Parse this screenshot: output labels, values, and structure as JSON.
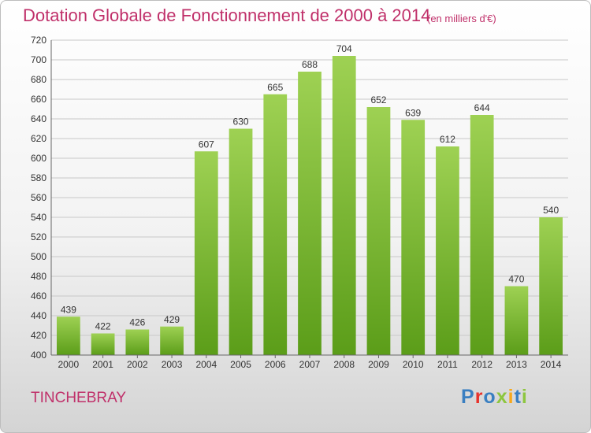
{
  "header": {
    "title": "Dotation Globale de Fonctionnement de 2000 à 2014",
    "unit": "(en milliers d'€)"
  },
  "footer": {
    "commune": "TINCHEBRAY",
    "logo_text": "Proxiti"
  },
  "colors": {
    "title": "#c0306a",
    "bar_top": "#9ed153",
    "bar_bottom": "#5b9d19",
    "grid": "#c8c8c8",
    "logo_letters": [
      "#3a7fc1",
      "#e8332b",
      "#3a7fc1",
      "#8dc63f",
      "#f7a81b",
      "#3a7fc1",
      "#8dc63f"
    ]
  },
  "chart_data": {
    "type": "bar",
    "categories": [
      "2000",
      "2001",
      "2002",
      "2003",
      "2004",
      "2005",
      "2006",
      "2007",
      "2008",
      "2009",
      "2010",
      "2011",
      "2012",
      "2013",
      "2014"
    ],
    "values": [
      439,
      422,
      426,
      429,
      607,
      630,
      665,
      688,
      704,
      652,
      639,
      612,
      644,
      470,
      540
    ],
    "ylim": [
      400,
      720
    ],
    "yticks": [
      400,
      420,
      440,
      460,
      480,
      500,
      520,
      540,
      560,
      580,
      600,
      620,
      640,
      660,
      680,
      700,
      720
    ],
    "grid": true,
    "legend": "none",
    "data_labels": true
  }
}
